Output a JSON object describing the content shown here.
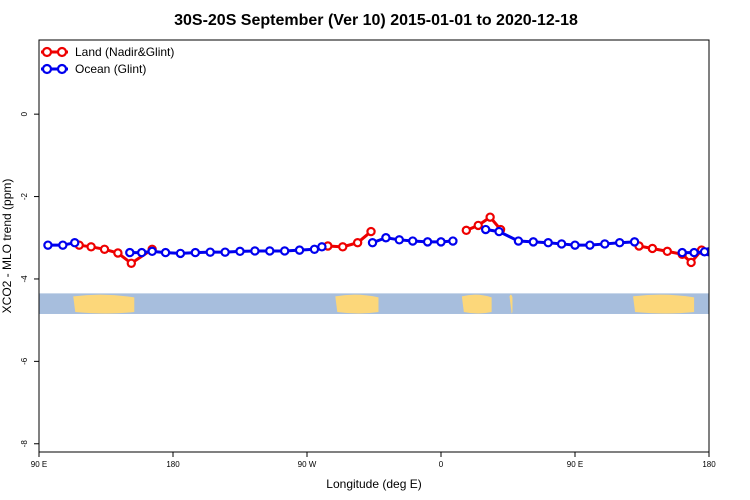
{
  "chart_data": {
    "type": "line",
    "title": "30S-20S September (Ver 10)   2015-01-01 to 2020-12-18",
    "xlabel": "Longitude (deg E)",
    "ylabel": "XCO2 - MLO trend (ppm)",
    "xlim": [
      90,
      540
    ],
    "ylim": [
      -8.2,
      1.8
    ],
    "x_ticks": [
      {
        "value": 90,
        "label": "90 E"
      },
      {
        "value": 180,
        "label": "180"
      },
      {
        "value": 270,
        "label": "90 W"
      },
      {
        "value": 360,
        "label": "0"
      },
      {
        "value": 450,
        "label": "90 E"
      },
      {
        "value": 540,
        "label": "180"
      }
    ],
    "y_ticks": [
      {
        "value": 0,
        "label": "0"
      },
      {
        "value": -2,
        "label": "-2"
      },
      {
        "value": -4,
        "label": "-4"
      },
      {
        "value": -6,
        "label": "-6"
      },
      {
        "value": -8,
        "label": "-8"
      }
    ],
    "legend_position": "top-left",
    "map_strip": {
      "y_range": [
        -4.85,
        -4.35
      ],
      "ocean_color": "#a7bedd",
      "land_color": "#fcd77a"
    },
    "series": [
      {
        "name": "Land (Nadir&Glint)",
        "color": "#ee0000",
        "segments": [
          {
            "x": [
              117,
              125,
              134,
              143,
              152,
              166
            ],
            "y": [
              -3.18,
              -3.22,
              -3.28,
              -3.37,
              -3.62,
              -3.28
            ]
          },
          {
            "x": [
              284,
              294,
              304,
              313
            ],
            "y": [
              -3.2,
              -3.22,
              -3.12,
              -2.85
            ]
          },
          {
            "x": [
              377,
              385,
              393,
              400
            ],
            "y": [
              -2.82,
              -2.7,
              -2.5,
              -2.8
            ]
          },
          {
            "x": [
              493,
              502,
              512,
              522,
              528,
              535
            ],
            "y": [
              -3.2,
              -3.26,
              -3.33,
              -3.4,
              -3.6,
              -3.3
            ]
          }
        ]
      },
      {
        "name": "Ocean (Glint)",
        "color": "#0000ee",
        "segments": [
          {
            "x": [
              96,
              106,
              114
            ],
            "y": [
              -3.18,
              -3.18,
              -3.12
            ]
          },
          {
            "x": [
              151,
              159,
              166,
              175,
              185,
              195,
              205,
              215,
              225,
              235,
              245,
              255,
              265,
              275
            ],
            "y": [
              -3.36,
              -3.36,
              -3.33,
              -3.36,
              -3.38,
              -3.36,
              -3.35,
              -3.35,
              -3.33,
              -3.32,
              -3.32,
              -3.32,
              -3.3,
              -3.28
            ]
          },
          {
            "x": [
              280
            ],
            "y": [
              -3.22
            ]
          },
          {
            "x": [
              314,
              323,
              332,
              341,
              351,
              360,
              368
            ],
            "y": [
              -3.12,
              -3.0,
              -3.05,
              -3.08,
              -3.1,
              -3.1,
              -3.08
            ]
          },
          {
            "x": [
              390,
              399,
              412,
              422,
              432,
              441,
              450,
              460,
              470,
              480,
              490
            ],
            "y": [
              -2.8,
              -2.85,
              -3.08,
              -3.1,
              -3.12,
              -3.15,
              -3.18,
              -3.18,
              -3.15,
              -3.12,
              -3.1
            ]
          },
          {
            "x": [
              522,
              530,
              540
            ],
            "y": [
              -3.36,
              -3.36,
              -3.34
            ]
          },
          {
            "x": [
              537
            ],
            "y": [
              -3.34
            ]
          }
        ]
      }
    ]
  }
}
